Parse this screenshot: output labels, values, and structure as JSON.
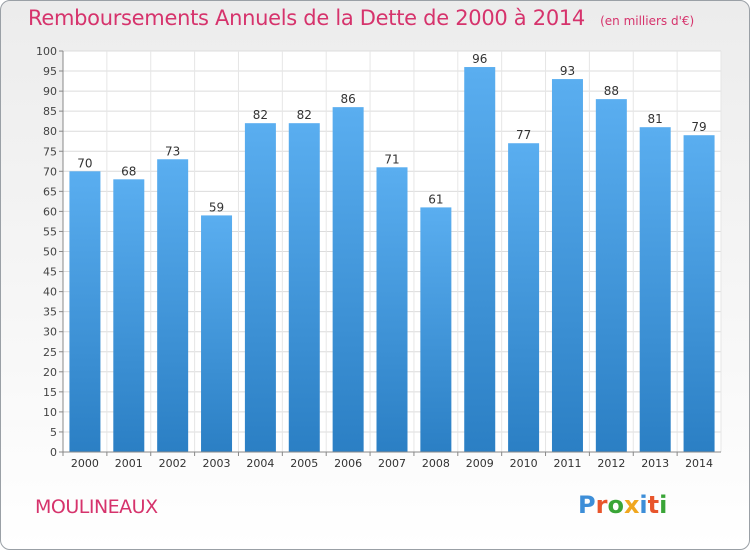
{
  "header": {
    "title": "Remboursements Annuels de la Dette de 2000 à 2014",
    "subtitle": "(en milliers d'€)"
  },
  "footer": {
    "town": "MOULINEAUX",
    "logo_letters": [
      "P",
      "r",
      "o",
      "x",
      "i",
      "t",
      "i"
    ]
  },
  "colors": {
    "title": "#d6336c",
    "bar_top": "#5aaef0",
    "bar_bottom": "#2b7fc4",
    "logo": [
      "#3d8ed8",
      "#e8552c",
      "#3aa537",
      "#f0a71f",
      "#3d8ed8",
      "#e8552c",
      "#3aa537"
    ]
  },
  "chart_data": {
    "type": "bar",
    "categories": [
      "2000",
      "2001",
      "2002",
      "2003",
      "2004",
      "2005",
      "2006",
      "2007",
      "2008",
      "2009",
      "2010",
      "2011",
      "2012",
      "2013",
      "2014"
    ],
    "values": [
      70,
      68,
      73,
      59,
      82,
      82,
      86,
      71,
      61,
      96,
      77,
      93,
      88,
      81,
      79
    ],
    "title": "Remboursements Annuels de la Dette de 2000 à 2014",
    "xlabel": "",
    "ylabel": "",
    "ylim": [
      0,
      100
    ],
    "ytick_step": 5,
    "grid": true,
    "legend": "none"
  }
}
